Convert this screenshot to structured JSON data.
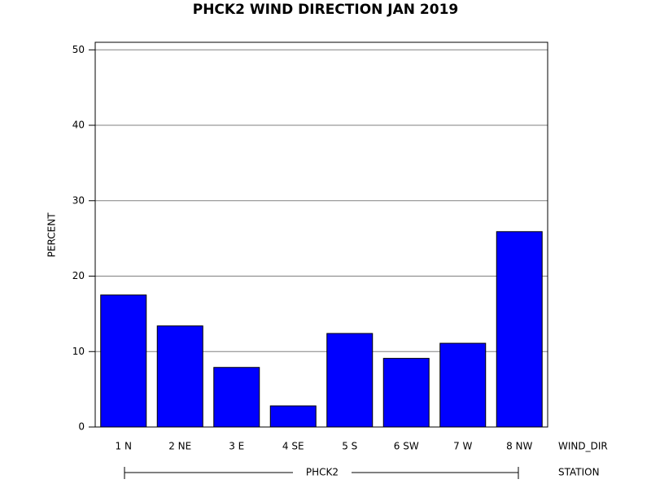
{
  "chart_data": {
    "type": "bar",
    "title": "PHCK2 WIND DIRECTION JAN 2019",
    "y_label": "PERCENT",
    "x_label": "WIND_DIR",
    "group_label": "STATION",
    "group": "PHCK2",
    "categories": [
      "1 N",
      "2 NE",
      "3 E",
      "4 SE",
      "5 S",
      "6 SW",
      "7 W",
      "8 NW"
    ],
    "values": [
      17.5,
      13.4,
      7.9,
      2.8,
      12.4,
      9.1,
      11.1,
      25.9
    ],
    "color": "#0000ff",
    "ylim": [
      0,
      51
    ],
    "yticks": [
      0,
      10,
      20,
      30,
      40,
      50
    ],
    "grid": true
  }
}
